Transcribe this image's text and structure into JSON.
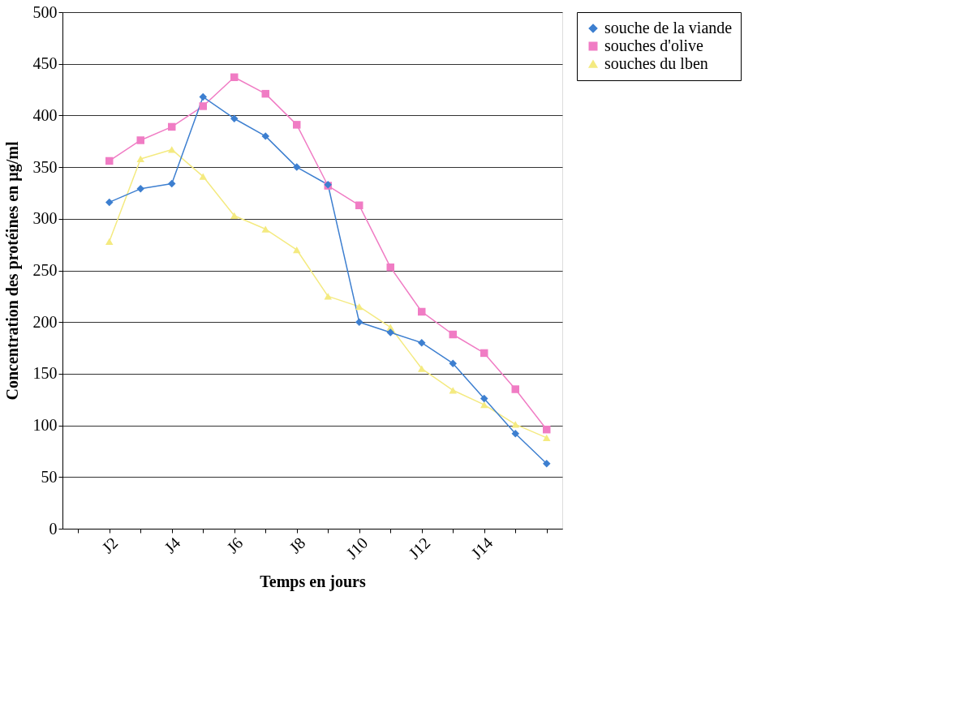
{
  "chart_data": {
    "type": "line",
    "xlabel": "Temps en jours",
    "ylabel": "Concentration des protéines en µg/ml",
    "categories": [
      null,
      "J2",
      null,
      "J4",
      null,
      "J6",
      null,
      "J8",
      null,
      "J10",
      null,
      "J12",
      null,
      "J14",
      null,
      null
    ],
    "series": [
      {
        "name": "souche de la viande",
        "color": "#3d7fd0",
        "marker": "diamond",
        "values": [
          null,
          316,
          329,
          334,
          418,
          397,
          380,
          350,
          333,
          200,
          190,
          180,
          160,
          126,
          92,
          63
        ]
      },
      {
        "name": "souches d'olive",
        "color": "#f07cc4",
        "marker": "square",
        "values": [
          null,
          356,
          376,
          389,
          409,
          437,
          421,
          391,
          332,
          313,
          253,
          210,
          188,
          170,
          135,
          96
        ]
      },
      {
        "name": "souches du lben",
        "color": "#f4ea80",
        "marker": "triangle",
        "values": [
          null,
          278,
          358,
          367,
          341,
          303,
          290,
          270,
          225,
          215,
          195,
          155,
          134,
          120,
          101,
          88
        ]
      }
    ],
    "ylim": [
      0,
      500
    ],
    "yticks": [
      0,
      50,
      100,
      150,
      200,
      250,
      300,
      350,
      400,
      450,
      500
    ],
    "grid": "y",
    "legend": "right",
    "line_style": "solid"
  }
}
